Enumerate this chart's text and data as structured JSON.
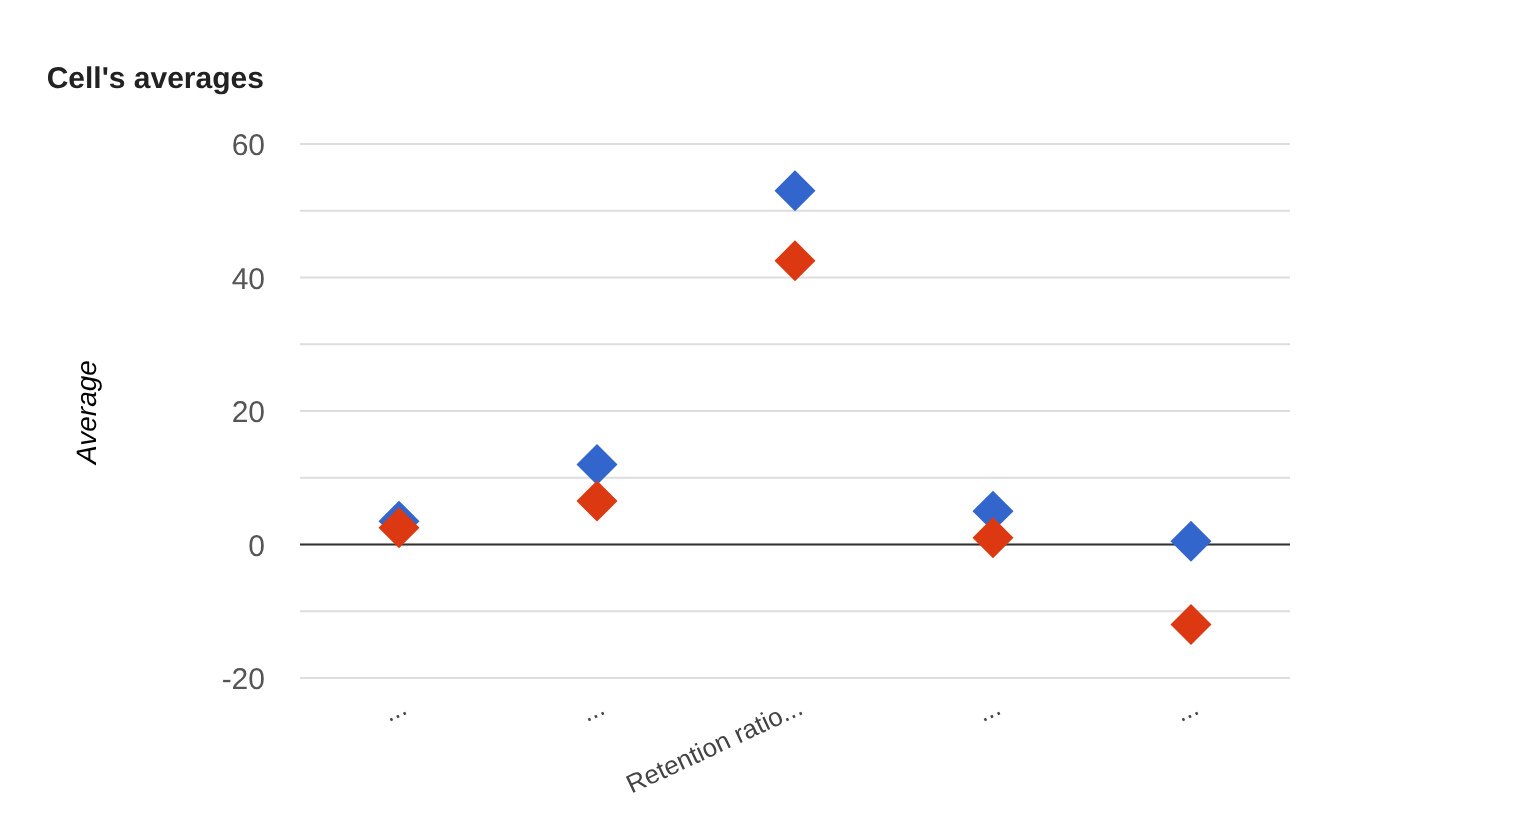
{
  "chart_data": {
    "type": "scatter",
    "title": "Cell's averages",
    "ylabel": "Average",
    "categories": [
      "...",
      "...",
      "Retention ratio...",
      "...",
      "..."
    ],
    "series": [
      {
        "color": "#3366cc",
        "values": [
          3.5,
          12,
          53,
          5,
          0.5
        ]
      },
      {
        "color": "#dc3912",
        "values": [
          2.5,
          6.5,
          42.5,
          1,
          -12
        ]
      }
    ],
    "ylim": [
      -20,
      60
    ],
    "yticks": [
      -20,
      {
        "value": -10,
        "label": null
      },
      0,
      {
        "value": 10,
        "label": null
      },
      20,
      {
        "value": 30,
        "label": null
      },
      40,
      {
        "value": 50,
        "label": null
      },
      60
    ],
    "grid": "y",
    "marker": "diamond",
    "ref_lines": [
      {
        "axis": "y",
        "value": 0,
        "color": "#333333"
      }
    ]
  }
}
